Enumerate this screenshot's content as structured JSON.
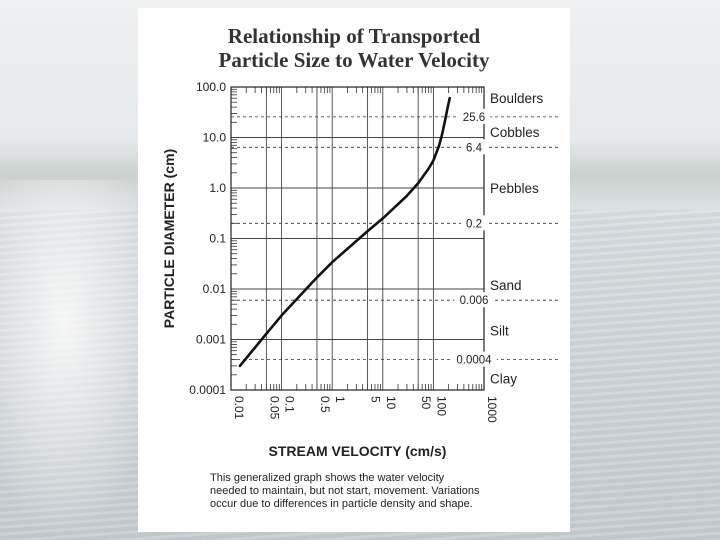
{
  "background": {
    "theme": "waterfall-photo",
    "color_top": "#eef0f1",
    "color_bottom": "#c5ccd0"
  },
  "title_lines": [
    "Relationship of Transported",
    "Particle Size to Water Velocity"
  ],
  "caption_lines": [
    "This generalized graph shows the water velocity",
    "needed to maintain, but not start, movement. Variations",
    "occur due to differences in particle density and  shape."
  ],
  "chart_data": {
    "type": "line",
    "title": "Relationship of Transported Particle Size to Water Velocity",
    "xlabel": "STREAM VELOCITY (cm/s)",
    "ylabel": "PARTICLE DIAMETER (cm)",
    "xscale": "log",
    "yscale": "log",
    "xlim": [
      0.01,
      1000
    ],
    "ylim": [
      0.0001,
      100
    ],
    "x_ticks": [
      "0.01",
      "0.05",
      "0.1",
      "0.5",
      "1",
      "5",
      "10",
      "50",
      "100",
      "1000"
    ],
    "x_tick_values": [
      0.01,
      0.05,
      0.1,
      0.5,
      1,
      5,
      10,
      50,
      100,
      1000
    ],
    "y_ticks": [
      "100.0",
      "10.0",
      "1.0",
      "0.1",
      "0.01",
      "0.001",
      "0.0001"
    ],
    "y_tick_values": [
      100,
      10,
      1,
      0.1,
      0.01,
      0.001,
      0.0001
    ],
    "grid": true,
    "line_color": "#111111",
    "series": [
      {
        "x": [
          0.015,
          0.05,
          0.1,
          0.5,
          1,
          5,
          10,
          30,
          50,
          80,
          100,
          130,
          150,
          170,
          190,
          210
        ],
        "y": [
          0.0003,
          0.0013,
          0.003,
          0.017,
          0.034,
          0.14,
          0.25,
          0.7,
          1.25,
          2.4,
          3.5,
          7,
          12,
          22,
          38,
          60
        ]
      }
    ],
    "boundaries": [
      {
        "label": "25.6",
        "value": 25.6
      },
      {
        "label": "6.4",
        "value": 6.4
      },
      {
        "label": "0.2",
        "value": 0.2
      },
      {
        "label": "0.006",
        "value": 0.006
      },
      {
        "label": "0.0004",
        "value": 0.0004
      }
    ],
    "classes": [
      {
        "label": "Boulders",
        "at": 60
      },
      {
        "label": "Cobbles",
        "at": 12.8
      },
      {
        "label": "Pebbles",
        "at": 1.0
      },
      {
        "label": "Sand",
        "at": 0.012
      },
      {
        "label": "Silt",
        "at": 0.0015
      },
      {
        "label": "Clay",
        "at": 0.00017
      }
    ]
  }
}
